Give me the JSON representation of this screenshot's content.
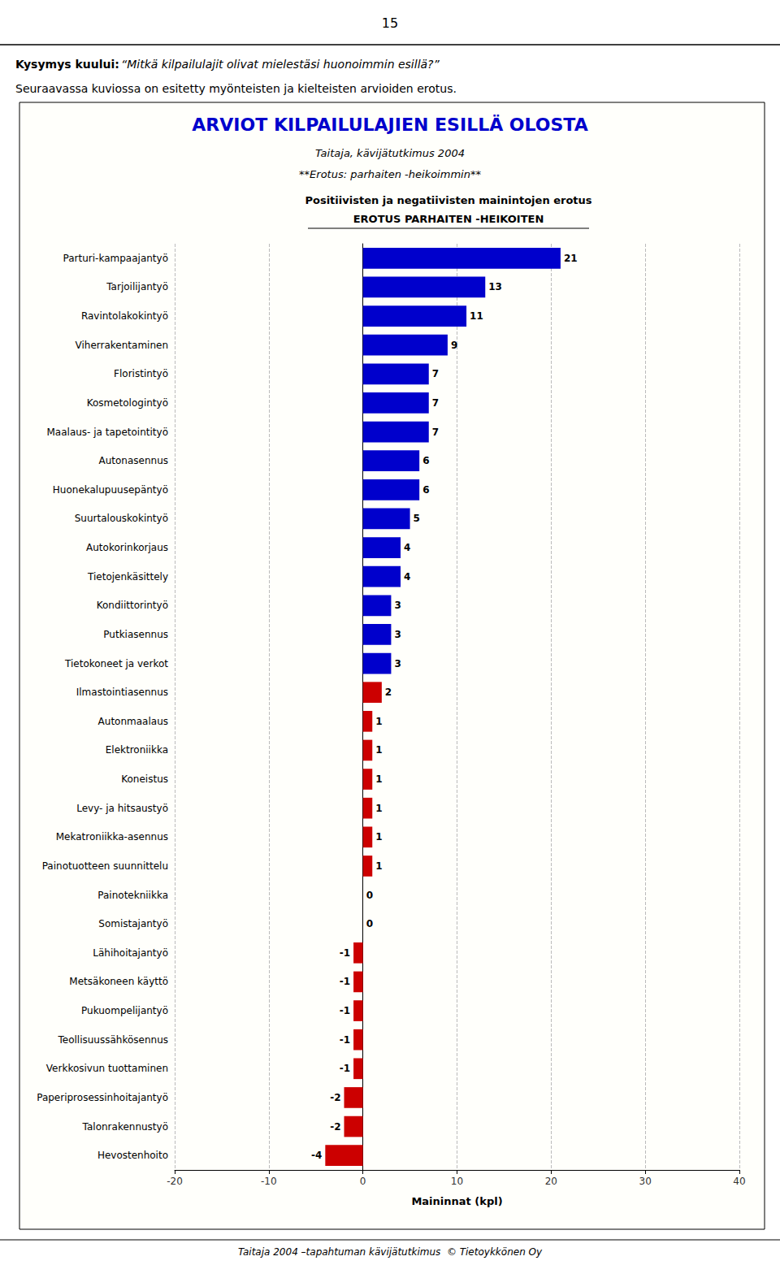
{
  "chart_data": {
    "type": "bar",
    "orientation": "horizontal",
    "title": "ARVIOT KILPAILULAJIEN ESILLÄ OLOSTA",
    "subtitle": "Taitaja, kävijätutkimus 2004",
    "annotations": [
      "15",
      "Kysymys kuului:",
      "“Mitkä kilpailulajit olivat mielestäsi huonoimmin esillä?”",
      "Seuraavassa kuviossa on esitetty myönteisten ja kielteisten arvioiden erotus.",
      "**Erotus: parhaiten -heikoimmin**",
      "Positiivisten ja negatiivisten mainintojen erotus",
      "EROTUS PARHAITEN -HEIKOITEN",
      "Taitaja 2004 –tapahtuman kävijätutkimus  © Tietoykkönen Oy"
    ],
    "xlabel": "Maininnat (kpl)",
    "categories": [
      "Parturi-kampaajantyö",
      "Tarjoilijantyö",
      "Ravintolakokintyö",
      "Viherrakentaminen",
      "Floristintyö",
      "Kosmetologintyö",
      "Maalaus- ja tapetointityö",
      "Autonasennus",
      "Huonekalupuusepäntyö",
      "Suurtalouskokintyö",
      "Autokorinkorjaus",
      "Tietojenkäsittely",
      "Kondiittorintyö",
      "Putkiasennus",
      "Tietokoneet ja verkot",
      "Ilmastointiasennus",
      "Autonmaalaus",
      "Elektroniikka",
      "Koneistus",
      "Levy- ja hitsaustyö",
      "Mekatroniikka-asennus",
      "Painotuotteen suunnittelu",
      "Painotekniikka",
      "Somistajantyö",
      "Lähihoitajantyö",
      "Metsäkoneen käyttö",
      "Pukuompelijantyö",
      "Teollisuussähkösennus",
      "Verkkosivun tuottaminen",
      "Paperiprosessinhoitajantyö",
      "Talonrakennustyö",
      "Hevostenhoito"
    ],
    "values": [
      21,
      13,
      11,
      9,
      7,
      7,
      7,
      6,
      6,
      5,
      4,
      4,
      3,
      3,
      3,
      2,
      1,
      1,
      1,
      1,
      1,
      1,
      0,
      0,
      -1,
      -1,
      -1,
      -1,
      -1,
      -2,
      -2,
      -4
    ],
    "colors": [
      "#0000CC",
      "#0000CC",
      "#0000CC",
      "#0000CC",
      "#0000CC",
      "#0000CC",
      "#0000CC",
      "#0000CC",
      "#0000CC",
      "#0000CC",
      "#0000CC",
      "#0000CC",
      "#0000CC",
      "#0000CC",
      "#0000CC",
      "#CC0000",
      "#CC0000",
      "#CC0000",
      "#CC0000",
      "#CC0000",
      "#CC0000",
      "#CC0000",
      "#CC0000",
      "#CC0000",
      "#CC0000",
      "#CC0000",
      "#CC0000",
      "#CC0000",
      "#CC0000",
      "#CC0000",
      "#CC0000",
      "#CC0000"
    ],
    "xlim": [
      -20,
      40
    ],
    "xticks": [
      -20,
      -10,
      0,
      10,
      20,
      30,
      40
    ],
    "grid": true,
    "data_labels": true
  }
}
